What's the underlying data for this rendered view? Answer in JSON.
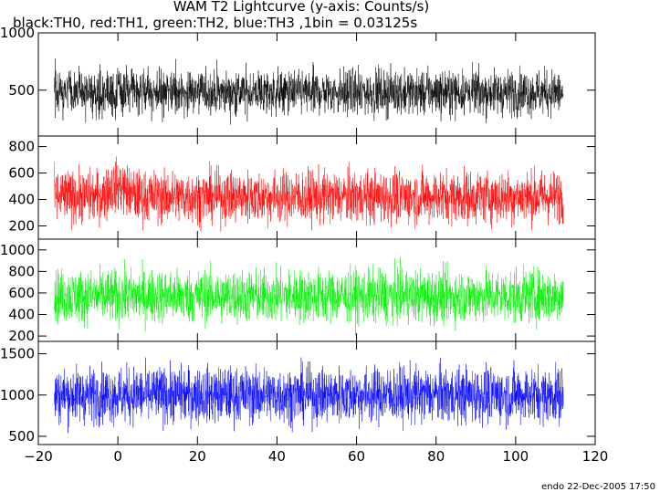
{
  "title": "WAM T2 Lightcurve (y-axis: Counts/s)",
  "subtitle": "black:TH0, red:TH1, green:TH2, blue:TH3 ,1bin = 0.03125s",
  "footer": "endo 22-Dec-2005 17:50",
  "chart_data": {
    "type": "line",
    "xlim": [
      -20,
      120
    ],
    "x_ticks": [
      -20,
      0,
      20,
      40,
      60,
      80,
      100,
      120
    ],
    "x_tick_labels": [
      "−20",
      "0",
      "20",
      "40",
      "60",
      "80",
      "100",
      "120"
    ],
    "x_range": [
      -16,
      112
    ],
    "bin_width": 0.03125,
    "grid": false,
    "panels": [
      {
        "name": "TH0",
        "color": "#000000",
        "ylim": [
          100,
          1000
        ],
        "y_ticks": [
          500,
          1000
        ],
        "y_tick_labels": [
          "500",
          "1000"
        ],
        "mean": 480,
        "spread": 140,
        "bump": 0
      },
      {
        "name": "TH1",
        "color": "#ff0000",
        "ylim": [
          100,
          880
        ],
        "y_ticks": [
          200,
          400,
          600,
          800
        ],
        "y_tick_labels": [
          "200",
          "400",
          "600",
          "800"
        ],
        "mean": 420,
        "spread": 140,
        "bump": 80
      },
      {
        "name": "TH2",
        "color": "#00ee00",
        "ylim": [
          150,
          1100
        ],
        "y_ticks": [
          200,
          400,
          600,
          800,
          1000
        ],
        "y_tick_labels": [
          "200",
          "400",
          "600",
          "800",
          "1000"
        ],
        "mean": 570,
        "spread": 175,
        "bump": 0
      },
      {
        "name": "TH3",
        "color": "#0000ff",
        "ylim": [
          400,
          1650
        ],
        "y_ticks": [
          500,
          1000,
          1500
        ],
        "y_tick_labels": [
          "500",
          "1000",
          "1500"
        ],
        "mean": 1000,
        "spread": 240,
        "bump": 0
      }
    ]
  }
}
